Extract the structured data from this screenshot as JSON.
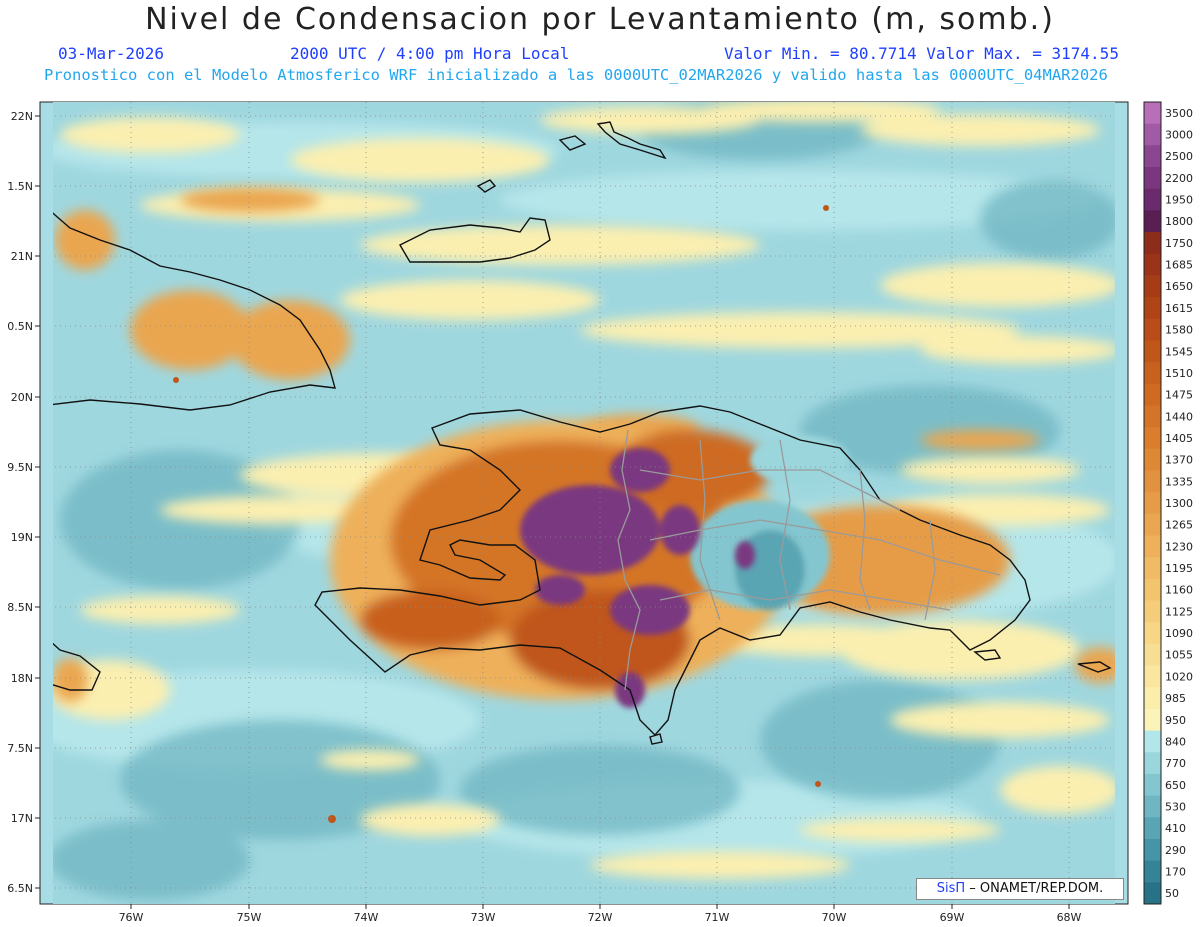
{
  "header": {
    "title": "Nivel de Condensacion por Levantamiento (m, somb.)",
    "date": "03-Mar-2026",
    "time": "2000 UTC / 4:00 pm Hora Local",
    "min_max": "Valor Min. = 80.7714  Valor Max. = 3174.55",
    "forecast_note": "Pronostico con el Modelo Atmosferico WRF inicializado a las 0000UTC_02MAR2026 y valido hasta las  0000UTC_04MAR2026"
  },
  "axes": {
    "lat_labels": [
      "22N",
      "1.5N",
      "21N",
      "0.5N",
      "20N",
      "9.5N",
      "19N",
      "8.5N",
      "18N",
      "7.5N",
      "17N",
      "6.5N"
    ],
    "lon_labels": [
      "76W",
      "75W",
      "74W",
      "73W",
      "72W",
      "71W",
      "70W",
      "69W",
      "68W"
    ]
  },
  "colorbar": {
    "levels": [
      "3500",
      "3000",
      "2500",
      "2200",
      "1950",
      "1800",
      "1750",
      "1685",
      "1650",
      "1615",
      "1580",
      "1545",
      "1510",
      "1475",
      "1440",
      "1405",
      "1370",
      "1335",
      "1300",
      "1265",
      "1230",
      "1195",
      "1160",
      "1125",
      "1090",
      "1055",
      "1020",
      "985",
      "950",
      "840",
      "770",
      "650",
      "530",
      "410",
      "290",
      "170",
      "50"
    ],
    "colors": [
      "#b86fb8",
      "#a05aa6",
      "#8a4690",
      "#7a3780",
      "#6a2a6c",
      "#5a1f52",
      "#8e2c1c",
      "#9a3318",
      "#a63c16",
      "#b04416",
      "#b94c18",
      "#c0561a",
      "#c8601e",
      "#ce6a22",
      "#d47428",
      "#da7e2e",
      "#de8836",
      "#e2923e",
      "#e69c46",
      "#eaa650",
      "#eeb05a",
      "#f1ba64",
      "#f3c46e",
      "#f5cd7a",
      "#f7d686",
      "#f8de92",
      "#fae69e",
      "#fbeeac",
      "#fcf3b8",
      "#b2e6ea",
      "#9ad6dc",
      "#84c6cf",
      "#6fb6c2",
      "#5aa5b4",
      "#4794a6",
      "#368396",
      "#277286"
    ]
  },
  "credit": {
    "brand": "SisΠ",
    "text": "– ONAMET/REP.DOM."
  }
}
